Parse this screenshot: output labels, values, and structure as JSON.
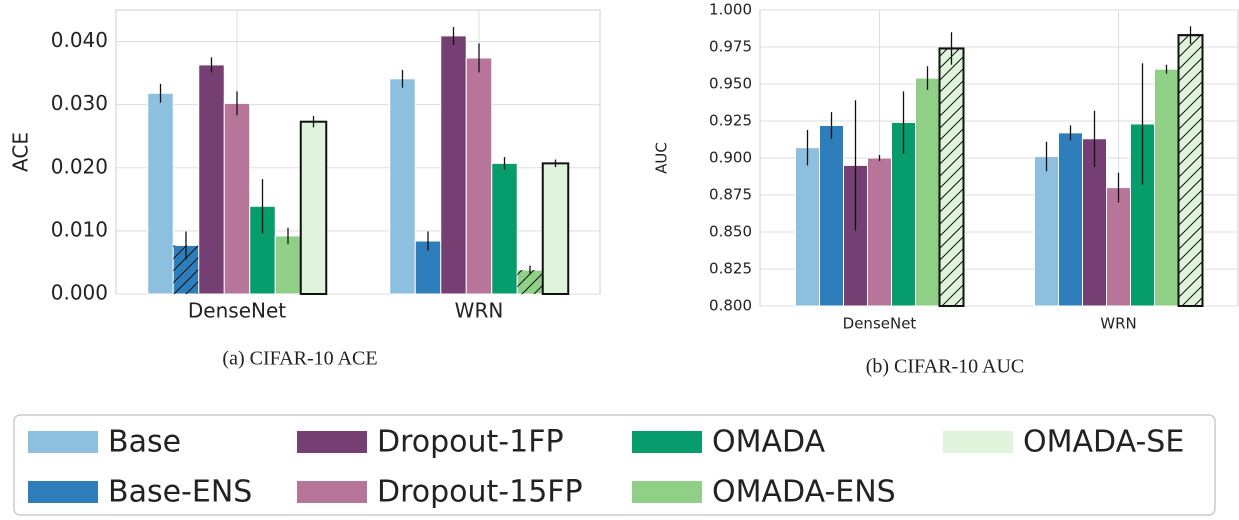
{
  "chart_data": [
    {
      "type": "bar",
      "caption": "(a) CIFAR-10 ACE",
      "ylabel": "ACE",
      "categories": [
        "DenseNet",
        "WRN"
      ],
      "ylim": [
        0,
        0.045
      ],
      "yticks": [
        {
          "value": 0,
          "label": "0.000"
        },
        {
          "value": 0.01,
          "label": "0.010"
        },
        {
          "value": 0.02,
          "label": "0.020"
        },
        {
          "value": 0.03,
          "label": "0.030"
        },
        {
          "value": 0.04,
          "label": "0.040"
        }
      ],
      "grid": true,
      "series": [
        {
          "name": "Base",
          "color": "#8dc0de",
          "values": [
            0.0318,
            0.0341
          ],
          "errors": [
            0.0015,
            0.0014
          ],
          "hatch": [
            false,
            false
          ],
          "outline": [
            false,
            false
          ]
        },
        {
          "name": "Base-ENS",
          "color": "#2e7ebc",
          "values": [
            0.0077,
            0.0084
          ],
          "errors": [
            0.0022,
            0.0015
          ],
          "hatch": [
            true,
            false
          ],
          "outline": [
            false,
            false
          ]
        },
        {
          "name": "Dropout-1FP",
          "color": "#763f73",
          "values": [
            0.0363,
            0.0409
          ],
          "errors": [
            0.0012,
            0.0014
          ],
          "hatch": [
            false,
            false
          ],
          "outline": [
            false,
            false
          ]
        },
        {
          "name": "Dropout-15FP",
          "color": "#b8759a",
          "values": [
            0.0302,
            0.0374
          ],
          "errors": [
            0.0019,
            0.0023
          ],
          "hatch": [
            false,
            false
          ],
          "outline": [
            false,
            false
          ]
        },
        {
          "name": "OMADA",
          "color": "#079c6c",
          "values": [
            0.0139,
            0.0207
          ],
          "errors": [
            0.0043,
            0.001
          ],
          "hatch": [
            false,
            false
          ],
          "outline": [
            false,
            false
          ]
        },
        {
          "name": "OMADA-ENS",
          "color": "#8fcf86",
          "values": [
            0.0092,
            0.0038
          ],
          "errors": [
            0.0013,
            0.0007
          ],
          "hatch": [
            false,
            true
          ],
          "outline": [
            false,
            false
          ]
        },
        {
          "name": "OMADA-SE",
          "color": "#e0f3db",
          "values": [
            0.0273,
            0.0207
          ],
          "errors": [
            0.0009,
            0.0006
          ],
          "hatch": [
            false,
            false
          ],
          "outline": [
            true,
            true
          ]
        }
      ]
    },
    {
      "type": "bar",
      "caption": "(b) CIFAR-10 AUC",
      "ylabel": "AUC",
      "categories": [
        "DenseNet",
        "WRN"
      ],
      "ylim": [
        0.8,
        1.0
      ],
      "yticks": [
        {
          "value": 0.8,
          "label": "0.800"
        },
        0.825,
        {
          "value": 0.85,
          "label": "0.850"
        },
        0.875,
        {
          "value": 0.9,
          "label": "0.900"
        },
        0.925,
        {
          "value": 0.95,
          "label": "0.950"
        },
        0.975,
        {
          "value": 1.0,
          "label": "1.000"
        }
      ],
      "grid": true,
      "series": [
        {
          "name": "Base",
          "color": "#8dc0de",
          "values": [
            0.907,
            0.901
          ],
          "errors": [
            0.012,
            0.01
          ],
          "hatch": [
            false,
            false
          ],
          "outline": [
            false,
            false
          ]
        },
        {
          "name": "Base-ENS",
          "color": "#2e7ebc",
          "values": [
            0.922,
            0.917
          ],
          "errors": [
            0.009,
            0.005
          ],
          "hatch": [
            false,
            false
          ],
          "outline": [
            false,
            false
          ]
        },
        {
          "name": "Dropout-1FP",
          "color": "#763f73",
          "values": [
            0.895,
            0.913
          ],
          "errors": [
            0.044,
            0.019
          ],
          "hatch": [
            false,
            false
          ],
          "outline": [
            false,
            false
          ]
        },
        {
          "name": "Dropout-15FP",
          "color": "#b8759a",
          "values": [
            0.9,
            0.88
          ],
          "errors": [
            0.002,
            0.01
          ],
          "hatch": [
            false,
            false
          ],
          "outline": [
            false,
            false
          ]
        },
        {
          "name": "OMADA",
          "color": "#079c6c",
          "values": [
            0.924,
            0.923
          ],
          "errors": [
            0.021,
            0.041
          ],
          "hatch": [
            false,
            false
          ],
          "outline": [
            false,
            false
          ]
        },
        {
          "name": "OMADA-ENS",
          "color": "#8fcf86",
          "values": [
            0.954,
            0.96
          ],
          "errors": [
            0.008,
            0.003
          ],
          "hatch": [
            false,
            false
          ],
          "outline": [
            false,
            false
          ]
        },
        {
          "name": "OMADA-SE",
          "color": "#e0f3db",
          "values": [
            0.974,
            0.983
          ],
          "errors": [
            0.011,
            0.006
          ],
          "hatch": [
            true,
            true
          ],
          "outline": [
            true,
            true
          ]
        }
      ]
    }
  ]
}
